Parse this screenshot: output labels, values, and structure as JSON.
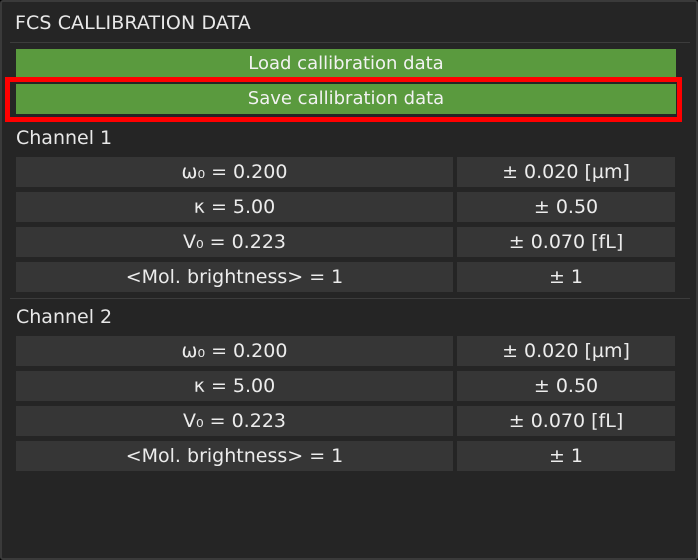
{
  "panel": {
    "title": "FCS CALLIBRATION DATA"
  },
  "buttons": {
    "load_label": "Load callibration data",
    "save_label": "Save callibration data"
  },
  "channels": [
    {
      "label": "Channel 1",
      "rows": [
        {
          "value": "ω₀ = 0.200",
          "error": "± 0.020 [µm]"
        },
        {
          "value": "κ = 5.00",
          "error": "± 0.50"
        },
        {
          "value": "V₀ = 0.223",
          "error": "± 0.070 [fL]"
        },
        {
          "value": "<Mol. brightness> = 1",
          "error": "± 1"
        }
      ]
    },
    {
      "label": "Channel 2",
      "rows": [
        {
          "value": "ω₀ = 0.200",
          "error": "± 0.020 [µm]"
        },
        {
          "value": "κ = 5.00",
          "error": "± 0.50"
        },
        {
          "value": "V₀ = 0.223",
          "error": "± 0.070 [fL]"
        },
        {
          "value": "<Mol. brightness> = 1",
          "error": "± 1"
        }
      ]
    }
  ],
  "colors": {
    "panel_bg": "#252525",
    "button_green": "#5a9a3e",
    "cell_bg": "#363636",
    "highlight": "#ff0000"
  }
}
